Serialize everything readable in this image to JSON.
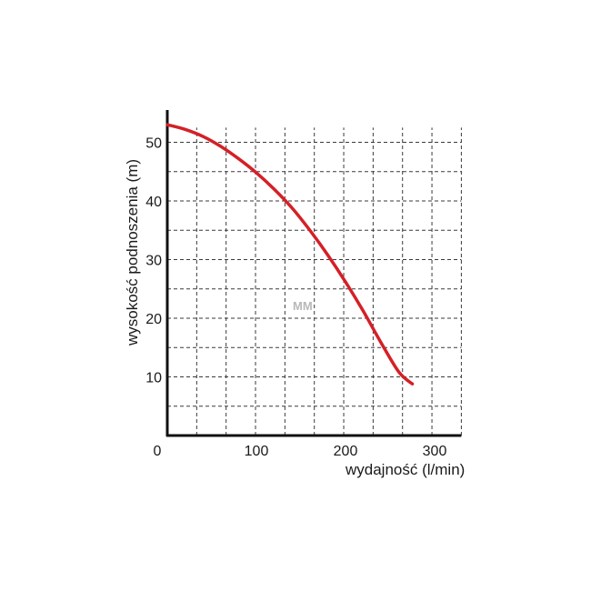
{
  "chart_data": {
    "type": "line",
    "xlabel": "wydajność (l/min)",
    "ylabel": "wysokość podnoszenia (m)",
    "xlim": [
      0,
      330
    ],
    "ylim": [
      0,
      55
    ],
    "x_ticks": [
      0,
      100,
      200,
      300
    ],
    "y_ticks": [
      10,
      20,
      30,
      40,
      50
    ],
    "grid": true,
    "watermark": "MM",
    "line_color": "#d42027",
    "series": [
      {
        "x": [
          0,
          20,
          40,
          60,
          80,
          100,
          120,
          140,
          160,
          180,
          200,
          220,
          240,
          260,
          275
        ],
        "y": [
          53,
          52.2,
          51,
          49.3,
          47.2,
          44.8,
          42,
          38.8,
          35,
          30.8,
          26.2,
          21.2,
          15.8,
          10.8,
          8.8
        ]
      }
    ]
  }
}
